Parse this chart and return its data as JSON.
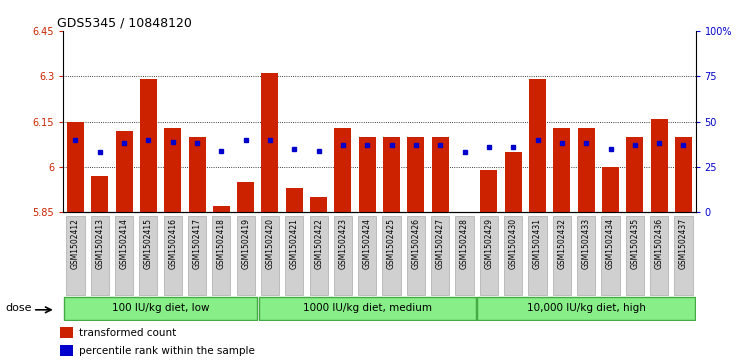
{
  "title": "GDS5345 / 10848120",
  "samples": [
    "GSM1502412",
    "GSM1502413",
    "GSM1502414",
    "GSM1502415",
    "GSM1502416",
    "GSM1502417",
    "GSM1502418",
    "GSM1502419",
    "GSM1502420",
    "GSM1502421",
    "GSM1502422",
    "GSM1502423",
    "GSM1502424",
    "GSM1502425",
    "GSM1502426",
    "GSM1502427",
    "GSM1502428",
    "GSM1502429",
    "GSM1502430",
    "GSM1502431",
    "GSM1502432",
    "GSM1502433",
    "GSM1502434",
    "GSM1502435",
    "GSM1502436",
    "GSM1502437"
  ],
  "bar_values": [
    6.15,
    5.97,
    6.12,
    6.29,
    6.13,
    6.1,
    5.87,
    5.95,
    6.31,
    5.93,
    5.9,
    6.13,
    6.1,
    6.1,
    6.1,
    6.1,
    5.85,
    5.99,
    6.05,
    6.29,
    6.13,
    6.13,
    6.0,
    6.1,
    6.16,
    6.1
  ],
  "percentile_values": [
    40,
    33,
    38,
    40,
    39,
    38,
    34,
    40,
    40,
    35,
    34,
    37,
    37,
    37,
    37,
    37,
    33,
    36,
    36,
    40,
    38,
    38,
    35,
    37,
    38,
    37
  ],
  "ymin": 5.85,
  "ymax": 6.45,
  "yticks": [
    5.85,
    6.0,
    6.15,
    6.3,
    6.45
  ],
  "ytick_labels": [
    "5.85",
    "6",
    "6.15",
    "6.3",
    "6.45"
  ],
  "y2ticks": [
    0,
    25,
    50,
    75,
    100
  ],
  "y2tick_labels": [
    "0",
    "25",
    "50",
    "75",
    "100%"
  ],
  "grid_lines": [
    6.0,
    6.15,
    6.3
  ],
  "bar_color": "#cc2200",
  "dot_color": "#0000cc",
  "bar_width": 0.7,
  "groups": [
    {
      "label": "100 IU/kg diet, low",
      "start": 0,
      "end": 8
    },
    {
      "label": "1000 IU/kg diet, medium",
      "start": 8,
      "end": 17
    },
    {
      "label": "10,000 IU/kg diet, high",
      "start": 17,
      "end": 26
    }
  ],
  "group_color": "#88ee88",
  "group_border_color": "#44aa44",
  "dose_label": "dose",
  "legend_items": [
    {
      "color": "#cc2200",
      "label": "transformed count"
    },
    {
      "color": "#0000cc",
      "label": "percentile rank within the sample"
    }
  ],
  "title_fontsize": 9,
  "tick_fontsize": 7,
  "label_fontsize": 7,
  "axis_label_color_left": "#cc2200",
  "axis_label_color_right": "#0000cc",
  "xtick_bg_color": "#d0d0d0",
  "plot_bg_color": "#ffffff"
}
